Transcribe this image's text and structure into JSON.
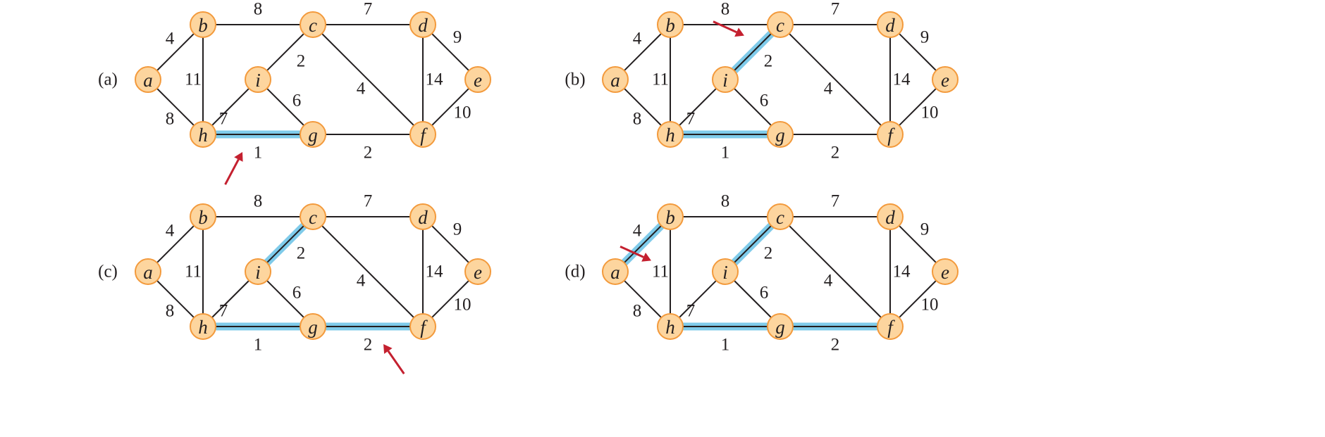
{
  "colors": {
    "node_fill": "#fdd59e",
    "node_stroke": "#f39a3c",
    "edge": "#231f20",
    "highlight": "#7fcbea",
    "arrow": "#c4202f"
  },
  "nodes": [
    {
      "id": "a",
      "label": "a"
    },
    {
      "id": "b",
      "label": "b"
    },
    {
      "id": "c",
      "label": "c"
    },
    {
      "id": "d",
      "label": "d"
    },
    {
      "id": "e",
      "label": "e"
    },
    {
      "id": "f",
      "label": "f"
    },
    {
      "id": "g",
      "label": "g"
    },
    {
      "id": "h",
      "label": "h"
    },
    {
      "id": "i",
      "label": "i"
    }
  ],
  "edges": [
    {
      "from": "a",
      "to": "b",
      "weight": "4"
    },
    {
      "from": "a",
      "to": "h",
      "weight": "8"
    },
    {
      "from": "b",
      "to": "c",
      "weight": "8"
    },
    {
      "from": "b",
      "to": "h",
      "weight": "11"
    },
    {
      "from": "c",
      "to": "d",
      "weight": "7"
    },
    {
      "from": "c",
      "to": "i",
      "weight": "2"
    },
    {
      "from": "c",
      "to": "f",
      "weight": "4"
    },
    {
      "from": "d",
      "to": "e",
      "weight": "9"
    },
    {
      "from": "d",
      "to": "f",
      "weight": "14"
    },
    {
      "from": "e",
      "to": "f",
      "weight": "10"
    },
    {
      "from": "h",
      "to": "i",
      "weight": "7"
    },
    {
      "from": "h",
      "to": "g",
      "weight": "1"
    },
    {
      "from": "i",
      "to": "g",
      "weight": "6"
    },
    {
      "from": "g",
      "to": "f",
      "weight": "2"
    }
  ],
  "panels": [
    {
      "label": "(a)",
      "highlighted": [
        "h-g"
      ],
      "arrow_edge": "h-g"
    },
    {
      "label": "(b)",
      "highlighted": [
        "h-g",
        "c-i"
      ],
      "arrow_edge": "c-i"
    },
    {
      "label": "(c)",
      "highlighted": [
        "h-g",
        "c-i",
        "g-f"
      ],
      "arrow_edge": "g-f"
    },
    {
      "label": "(d)",
      "highlighted": [
        "h-g",
        "c-i",
        "g-f",
        "a-b"
      ],
      "arrow_edge": "a-b"
    }
  ]
}
